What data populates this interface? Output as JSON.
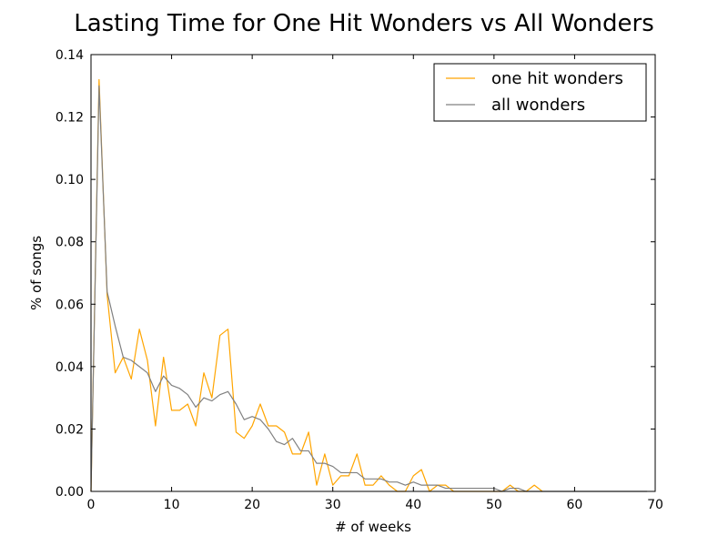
{
  "chart_data": {
    "type": "line",
    "title": "Lasting Time for One Hit Wonders vs All Wonders",
    "xlabel": "# of weeks",
    "ylabel": "% of songs",
    "xlim": [
      0,
      70
    ],
    "ylim": [
      0,
      0.14
    ],
    "xticks": [
      "0",
      "10",
      "20",
      "30",
      "40",
      "50",
      "60",
      "70"
    ],
    "yticks": [
      "0.00",
      "0.02",
      "0.04",
      "0.06",
      "0.08",
      "0.10",
      "0.12",
      "0.14"
    ],
    "grid": false,
    "legend_position": "top-right",
    "series": [
      {
        "name": "one hit wonders",
        "color": "#FFA500",
        "x": [
          0,
          1,
          2,
          3,
          4,
          5,
          6,
          7,
          8,
          9,
          10,
          11,
          12,
          13,
          14,
          15,
          16,
          17,
          18,
          19,
          20,
          21,
          22,
          23,
          24,
          25,
          26,
          27,
          28,
          29,
          30,
          31,
          32,
          33,
          34,
          35,
          36,
          37,
          38,
          39,
          40,
          41,
          42,
          43,
          44,
          45,
          46,
          47,
          48,
          49,
          50,
          51,
          52,
          53,
          54,
          55,
          56
        ],
        "y": [
          0.0,
          0.132,
          0.063,
          0.038,
          0.043,
          0.036,
          0.052,
          0.042,
          0.021,
          0.043,
          0.026,
          0.026,
          0.028,
          0.021,
          0.038,
          0.03,
          0.05,
          0.052,
          0.019,
          0.017,
          0.021,
          0.028,
          0.021,
          0.021,
          0.019,
          0.012,
          0.012,
          0.019,
          0.002,
          0.012,
          0.002,
          0.005,
          0.005,
          0.012,
          0.002,
          0.002,
          0.005,
          0.002,
          0.0,
          0.0,
          0.005,
          0.007,
          0.0,
          0.002,
          0.002,
          0.0,
          0.0,
          0.0,
          0.0,
          0.0,
          0.0,
          0.0,
          0.002,
          0.0,
          0.0,
          0.002,
          0.0
        ]
      },
      {
        "name": "all wonders",
        "color": "#808080",
        "x": [
          0,
          1,
          2,
          3,
          4,
          5,
          6,
          7,
          8,
          9,
          10,
          11,
          12,
          13,
          14,
          15,
          16,
          17,
          18,
          19,
          20,
          21,
          22,
          23,
          24,
          25,
          26,
          27,
          28,
          29,
          30,
          31,
          32,
          33,
          34,
          35,
          36,
          37,
          38,
          39,
          40,
          41,
          42,
          43,
          44,
          45,
          46,
          47,
          48,
          49,
          50,
          51,
          52,
          53,
          54,
          55,
          56,
          57,
          58,
          59,
          60,
          61,
          62,
          63,
          64,
          65,
          66,
          67,
          68,
          69
        ],
        "y": [
          0.0,
          0.13,
          0.064,
          0.053,
          0.043,
          0.042,
          0.04,
          0.038,
          0.032,
          0.037,
          0.034,
          0.033,
          0.031,
          0.027,
          0.03,
          0.029,
          0.031,
          0.032,
          0.028,
          0.023,
          0.024,
          0.023,
          0.02,
          0.016,
          0.015,
          0.017,
          0.013,
          0.013,
          0.009,
          0.009,
          0.008,
          0.006,
          0.006,
          0.006,
          0.004,
          0.004,
          0.004,
          0.003,
          0.003,
          0.002,
          0.003,
          0.002,
          0.002,
          0.002,
          0.001,
          0.001,
          0.001,
          0.001,
          0.001,
          0.001,
          0.001,
          0.0,
          0.001,
          0.001,
          0.0,
          0.0,
          0.0,
          0.0,
          0.0,
          0.0,
          0.0,
          0.0,
          0.0,
          0.0,
          0.0,
          0.0,
          0.0,
          0.0,
          0.0,
          0.0
        ]
      }
    ]
  }
}
